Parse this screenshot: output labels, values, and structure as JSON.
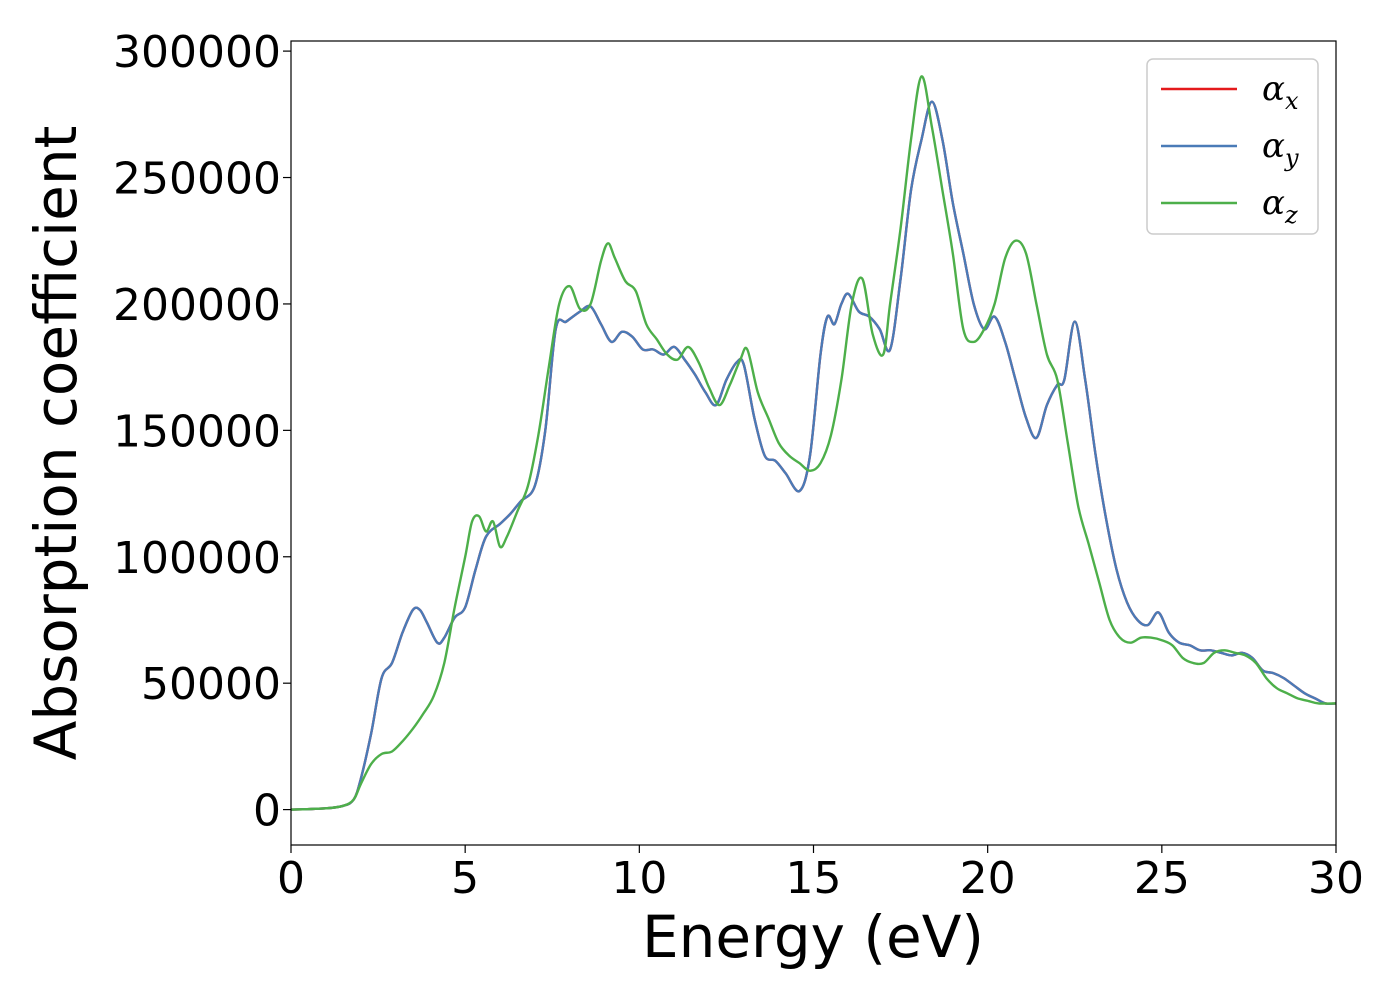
{
  "chart_data": {
    "type": "line",
    "xlabel": "Energy (eV)",
    "ylabel": "Absorption coefficient",
    "xlim": [
      0,
      30
    ],
    "ylim": [
      -14000,
      304000
    ],
    "xticks": [
      0,
      5,
      10,
      15,
      20,
      25,
      30
    ],
    "xtick_labels": [
      "0",
      "5",
      "10",
      "15",
      "20",
      "25",
      "30"
    ],
    "yticks": [
      0,
      50000,
      100000,
      150000,
      200000,
      250000,
      300000
    ],
    "ytick_labels": [
      "0",
      "50000",
      "100000",
      "150000",
      "200000",
      "250000",
      "300000"
    ],
    "grid": false,
    "legend_position": "top-right",
    "series": [
      {
        "name": "α_x",
        "symbol": "α",
        "subscript": "x",
        "color": "#e41a1c",
        "x": [
          0,
          1,
          1.5,
          1.8,
          2,
          2.3,
          2.6,
          2.9,
          3.2,
          3.5,
          3.7,
          3.9,
          4.2,
          4.4,
          4.7,
          5,
          5.3,
          5.6,
          6,
          6.3,
          6.6,
          7,
          7.3,
          7.6,
          7.9,
          8.3,
          8.6,
          8.9,
          9.2,
          9.5,
          9.8,
          10.1,
          10.4,
          10.7,
          11,
          11.3,
          11.6,
          11.9,
          12.2,
          12.5,
          12.8,
          13,
          13.3,
          13.6,
          13.9,
          14.2,
          14.6,
          14.9,
          15.2,
          15.4,
          15.6,
          15.8,
          16,
          16.3,
          16.6,
          16.9,
          17.2,
          17.5,
          17.8,
          18.1,
          18.4,
          18.7,
          19,
          19.3,
          19.6,
          19.9,
          20.2,
          20.5,
          20.8,
          21.1,
          21.4,
          21.7,
          22,
          22.2,
          22.5,
          22.8,
          23.1,
          23.4,
          23.7,
          24,
          24.3,
          24.6,
          24.9,
          25.2,
          25.5,
          25.8,
          26.1,
          26.4,
          26.7,
          27,
          27.3,
          27.6,
          27.9,
          28.2,
          28.5,
          28.8,
          29.1,
          29.4,
          29.7,
          30
        ],
        "y": [
          0,
          500,
          1500,
          4000,
          12000,
          30000,
          52000,
          58000,
          70000,
          79000,
          79000,
          74000,
          66000,
          68000,
          76000,
          80000,
          95000,
          108000,
          113000,
          117000,
          122000,
          128000,
          150000,
          190000,
          193000,
          197000,
          199000,
          192000,
          185000,
          189000,
          187000,
          182000,
          182000,
          180000,
          183000,
          178000,
          172000,
          165000,
          160000,
          170000,
          177000,
          176000,
          155000,
          140000,
          138000,
          133000,
          126000,
          140000,
          180000,
          195000,
          192000,
          200000,
          204000,
          197000,
          195000,
          190000,
          182000,
          210000,
          245000,
          265000,
          280000,
          265000,
          240000,
          220000,
          200000,
          190000,
          195000,
          185000,
          170000,
          155000,
          147000,
          160000,
          168000,
          170000,
          193000,
          170000,
          140000,
          115000,
          95000,
          82000,
          75000,
          73000,
          78000,
          70000,
          66000,
          65000,
          63000,
          63000,
          62000,
          61000,
          62000,
          60000,
          55000,
          54000,
          52000,
          49000,
          46000,
          44000,
          42000,
          42000
        ]
      },
      {
        "name": "α_y",
        "symbol": "α",
        "subscript": "y",
        "color": "#4a7bb7",
        "x": [
          0,
          1,
          1.5,
          1.8,
          2,
          2.3,
          2.6,
          2.9,
          3.2,
          3.5,
          3.7,
          3.9,
          4.2,
          4.4,
          4.7,
          5,
          5.3,
          5.6,
          6,
          6.3,
          6.6,
          7,
          7.3,
          7.6,
          7.9,
          8.3,
          8.6,
          8.9,
          9.2,
          9.5,
          9.8,
          10.1,
          10.4,
          10.7,
          11,
          11.3,
          11.6,
          11.9,
          12.2,
          12.5,
          12.8,
          13,
          13.3,
          13.6,
          13.9,
          14.2,
          14.6,
          14.9,
          15.2,
          15.4,
          15.6,
          15.8,
          16,
          16.3,
          16.6,
          16.9,
          17.2,
          17.5,
          17.8,
          18.1,
          18.4,
          18.7,
          19,
          19.3,
          19.6,
          19.9,
          20.2,
          20.5,
          20.8,
          21.1,
          21.4,
          21.7,
          22,
          22.2,
          22.5,
          22.8,
          23.1,
          23.4,
          23.7,
          24,
          24.3,
          24.6,
          24.9,
          25.2,
          25.5,
          25.8,
          26.1,
          26.4,
          26.7,
          27,
          27.3,
          27.6,
          27.9,
          28.2,
          28.5,
          28.8,
          29.1,
          29.4,
          29.7,
          30
        ],
        "y": [
          0,
          500,
          1500,
          4000,
          12000,
          30000,
          52000,
          58000,
          70000,
          79000,
          79000,
          74000,
          66000,
          68000,
          76000,
          80000,
          95000,
          108000,
          113000,
          117000,
          122000,
          128000,
          150000,
          190000,
          193000,
          197000,
          199000,
          192000,
          185000,
          189000,
          187000,
          182000,
          182000,
          180000,
          183000,
          178000,
          172000,
          165000,
          160000,
          170000,
          177000,
          176000,
          155000,
          140000,
          138000,
          133000,
          126000,
          140000,
          180000,
          195000,
          192000,
          200000,
          204000,
          197000,
          195000,
          190000,
          182000,
          210000,
          245000,
          265000,
          280000,
          265000,
          240000,
          220000,
          200000,
          190000,
          195000,
          185000,
          170000,
          155000,
          147000,
          160000,
          168000,
          170000,
          193000,
          170000,
          140000,
          115000,
          95000,
          82000,
          75000,
          73000,
          78000,
          70000,
          66000,
          65000,
          63000,
          63000,
          62000,
          61000,
          62000,
          60000,
          55000,
          54000,
          52000,
          49000,
          46000,
          44000,
          42000,
          42000
        ]
      },
      {
        "name": "α_z",
        "symbol": "α",
        "subscript": "z",
        "color": "#4daf4a",
        "x": [
          0,
          1,
          1.5,
          1.8,
          2,
          2.3,
          2.6,
          2.9,
          3.2,
          3.5,
          3.8,
          4.1,
          4.4,
          4.7,
          5,
          5.2,
          5.4,
          5.6,
          5.8,
          6,
          6.2,
          6.5,
          6.8,
          7.1,
          7.4,
          7.7,
          8,
          8.3,
          8.6,
          8.9,
          9.1,
          9.3,
          9.6,
          9.9,
          10.2,
          10.5,
          10.8,
          11.1,
          11.4,
          11.7,
          12,
          12.3,
          12.6,
          12.9,
          13.1,
          13.4,
          13.7,
          14,
          14.3,
          14.6,
          14.9,
          15.2,
          15.5,
          15.8,
          16.1,
          16.4,
          16.7,
          17,
          17.2,
          17.5,
          17.8,
          18.1,
          18.4,
          18.7,
          19,
          19.3,
          19.6,
          19.9,
          20.2,
          20.5,
          20.8,
          21.1,
          21.4,
          21.7,
          22,
          22.3,
          22.6,
          22.9,
          23.2,
          23.5,
          23.8,
          24.1,
          24.4,
          24.7,
          25,
          25.3,
          25.6,
          25.9,
          26.2,
          26.5,
          26.8,
          27.1,
          27.4,
          27.7,
          28,
          28.3,
          28.6,
          28.9,
          29.2,
          29.5,
          30
        ],
        "y": [
          0,
          500,
          1500,
          4000,
          10000,
          18000,
          22000,
          23000,
          27000,
          32000,
          38000,
          45000,
          58000,
          80000,
          100000,
          114000,
          116000,
          110000,
          114000,
          104000,
          108000,
          118000,
          128000,
          148000,
          175000,
          200000,
          207000,
          198000,
          200000,
          217000,
          224000,
          218000,
          209000,
          205000,
          192000,
          186000,
          180000,
          178000,
          183000,
          177000,
          167000,
          160000,
          168000,
          178000,
          182000,
          165000,
          155000,
          145000,
          140000,
          137000,
          134000,
          137000,
          148000,
          170000,
          200000,
          210000,
          188000,
          180000,
          200000,
          230000,
          265000,
          290000,
          270000,
          245000,
          220000,
          190000,
          185000,
          190000,
          200000,
          218000,
          225000,
          220000,
          200000,
          180000,
          170000,
          145000,
          120000,
          105000,
          90000,
          75000,
          68000,
          66000,
          68000,
          68000,
          67000,
          65000,
          60000,
          58000,
          58000,
          62000,
          63000,
          62000,
          61000,
          58000,
          52000,
          48000,
          46000,
          44000,
          43000,
          42000,
          42000
        ]
      }
    ]
  }
}
